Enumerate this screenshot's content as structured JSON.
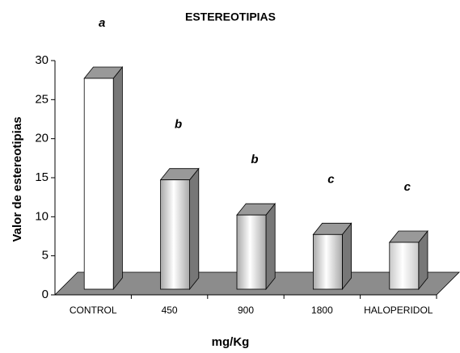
{
  "chart_data": {
    "type": "bar3d",
    "title": "ESTEREOTIPIAS",
    "categories": [
      "CONTROL",
      "450",
      "900",
      "1800",
      "HALOPERIDOL"
    ],
    "values": [
      27,
      14,
      9.5,
      7,
      6
    ],
    "annotations": [
      "a",
      "b",
      "b",
      "c",
      "c"
    ],
    "colors": [
      "#ffffff",
      "#a8a8a8",
      "#a8a8a8",
      "#a8a8a8",
      "#c8c8c8"
    ],
    "floor_color": "#8c8c8c",
    "x_label": "mg/Kg",
    "y_label": "Valor de estereotipias",
    "ylim": [
      0,
      30
    ],
    "yticks": [
      0,
      5,
      10,
      15,
      20,
      25,
      30
    ]
  }
}
